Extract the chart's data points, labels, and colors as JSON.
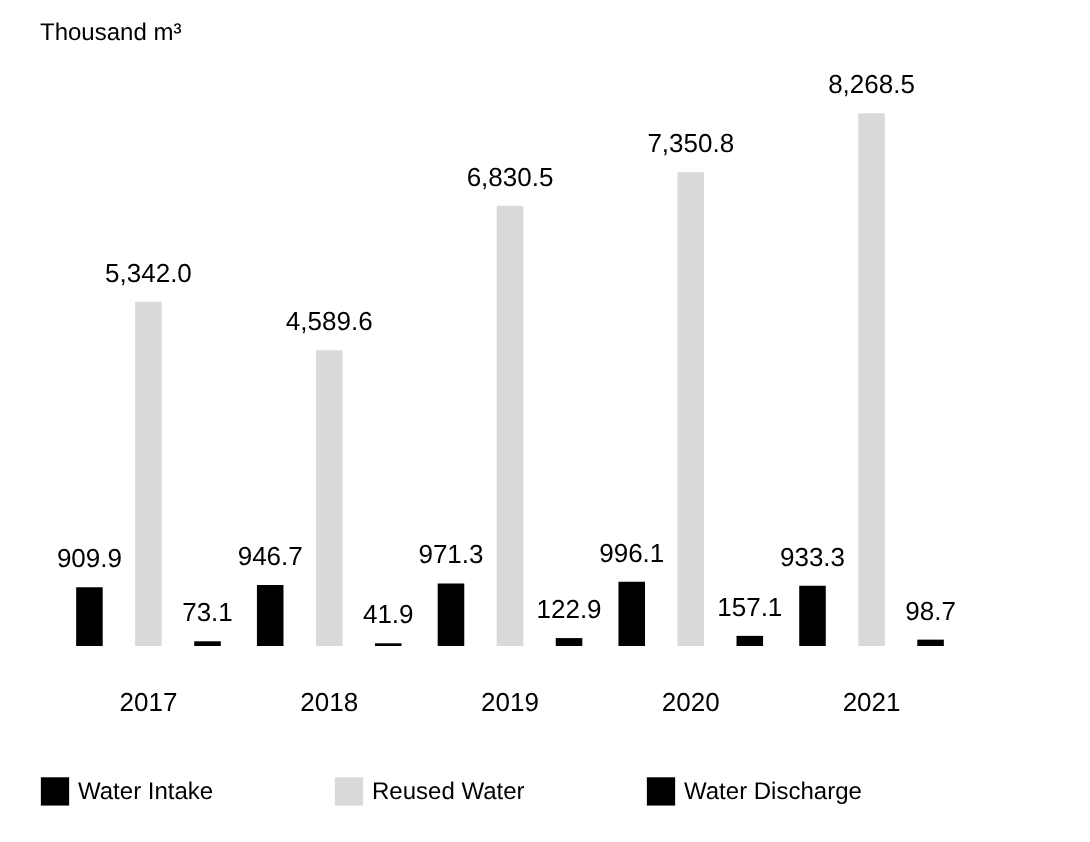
{
  "chart_data": {
    "type": "bar",
    "title": "Thousand m³",
    "categories": [
      "2017",
      "2018",
      "2019",
      "2020",
      "2021"
    ],
    "series": [
      {
        "name": "Water Intake",
        "color": "#000000",
        "values": [
          909.9,
          946.7,
          971.3,
          996.1,
          933.3
        ],
        "value_labels": [
          "909.9",
          "946.7",
          "971.3",
          "996.1",
          "933.3"
        ]
      },
      {
        "name": "Reused Water",
        "color": "#d9d9d9",
        "values": [
          5342.0,
          4589.6,
          6830.5,
          7350.8,
          8268.5
        ],
        "value_labels": [
          "5,342.0",
          "4,589.6",
          "6,830.5",
          "7,350.8",
          "8,268.5"
        ]
      },
      {
        "name": "Water Discharge",
        "color": "#000000",
        "values": [
          73.1,
          41.9,
          122.9,
          157.1,
          98.7
        ],
        "value_labels": [
          "73.1",
          "41.9",
          "122.9",
          "157.1",
          "98.7"
        ]
      }
    ],
    "legend": "bottom",
    "grid": false
  }
}
